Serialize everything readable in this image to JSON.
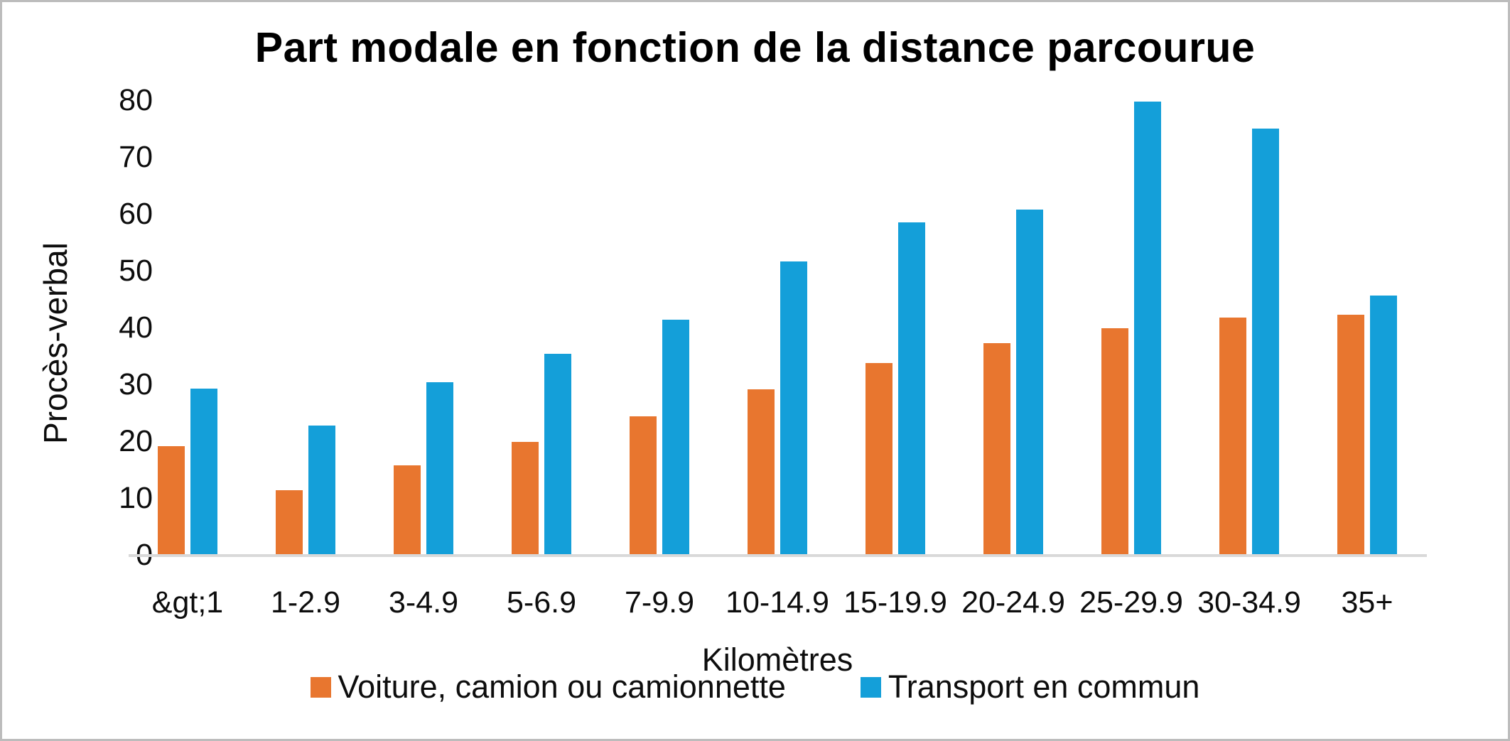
{
  "chart_data": {
    "type": "bar",
    "title": "Part modale en fonction de la distance parcourue",
    "xlabel": "Kilomètres",
    "ylabel": "Procès-verbal",
    "ylim": [
      0,
      80
    ],
    "ytick_step": 10,
    "yticks": [
      0,
      10,
      20,
      30,
      40,
      50,
      60,
      70,
      80
    ],
    "grid": false,
    "legend_position": "bottom",
    "categories": [
      "&gt;1",
      "1-2.9",
      "3-4.9",
      "5-6.9",
      "7-9.9",
      "10-14.9",
      "15-19.9",
      "20-24.9",
      "25-29.9",
      "30-34.9",
      "35+"
    ],
    "series": [
      {
        "name": "Voiture, camion ou camionnette",
        "color": "#e8762f",
        "values": [
          19.1,
          11.4,
          15.7,
          19.9,
          24.4,
          29.1,
          33.8,
          37.3,
          39.9,
          41.8,
          42.2
        ]
      },
      {
        "name": "Transport en commun",
        "color": "#149fd9",
        "values": [
          29.3,
          22.8,
          30.4,
          35.4,
          41.4,
          51.6,
          58.5,
          60.7,
          79.7,
          75.0,
          45.6
        ]
      }
    ]
  },
  "ui": {
    "background_color": "#ffffff",
    "border_color": "#bcbcbc",
    "axis_line_color": "#d9d9d9",
    "text_color": "#000000"
  }
}
